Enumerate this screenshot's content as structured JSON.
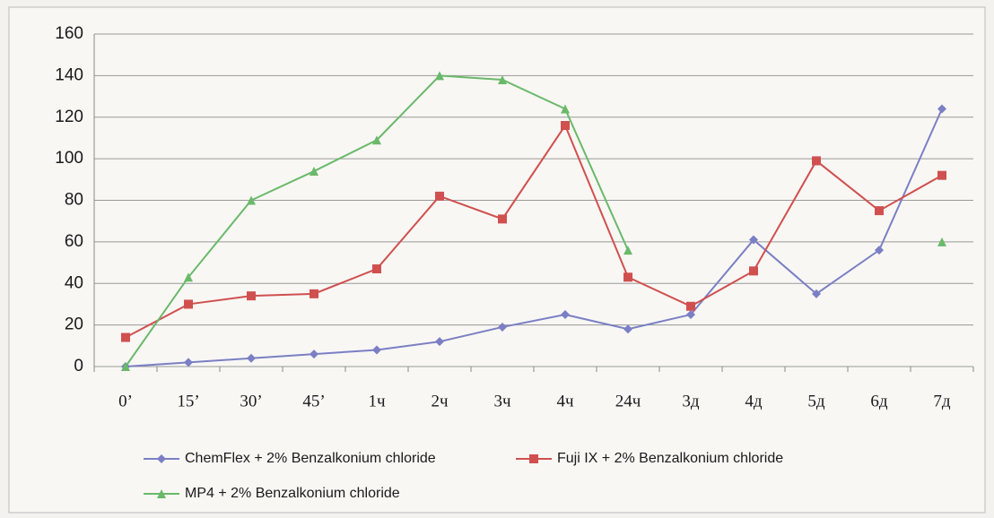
{
  "chart_data": {
    "type": "line",
    "categories": [
      "0’",
      "15’",
      "30’",
      "45’",
      "1ч",
      "2ч",
      "3ч",
      "4ч",
      "24ч",
      "3д",
      "4д",
      "5д",
      "6д",
      "7д"
    ],
    "series": [
      {
        "name": "ChemFlex + 2% Benzalkonium chloride",
        "color": "#7b7fc4",
        "values": [
          0,
          2,
          4,
          6,
          8,
          12,
          19,
          25,
          18,
          25,
          61,
          35,
          56,
          124
        ]
      },
      {
        "name": "Fuji IX + 2% Benzalkonium chloride",
        "color": "#d0504f",
        "values": [
          14,
          30,
          34,
          35,
          47,
          82,
          71,
          116,
          43,
          29,
          46,
          99,
          75,
          92
        ]
      },
      {
        "name": "MP4 + 2% Benzalkonium chloride",
        "color": "#6ab96a",
        "values": [
          0,
          43,
          80,
          94,
          109,
          140,
          138,
          124,
          56,
          null,
          null,
          null,
          null,
          60
        ]
      }
    ],
    "ylim": [
      0,
      160
    ],
    "yticks": [
      0,
      20,
      40,
      60,
      80,
      100,
      120,
      140,
      160
    ],
    "grid": true
  }
}
